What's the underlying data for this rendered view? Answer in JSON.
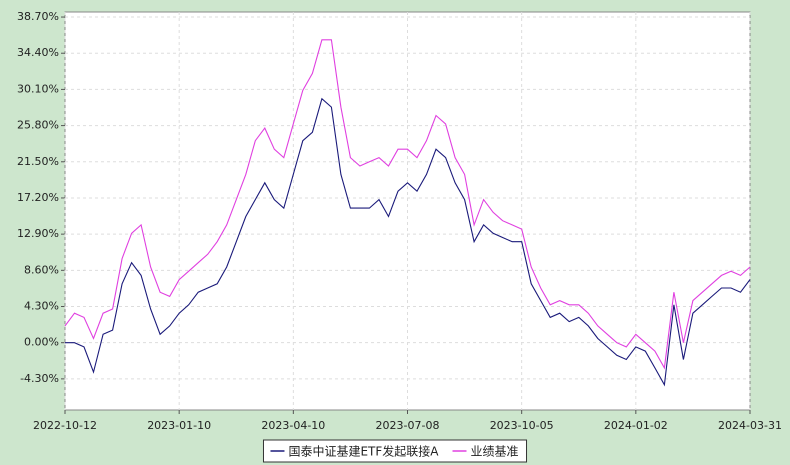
{
  "chart_data": {
    "type": "line",
    "categories": [
      "2022-10-12",
      null,
      null,
      null,
      null,
      null,
      null,
      null,
      null,
      null,
      null,
      null,
      "2023-01-10",
      null,
      null,
      null,
      null,
      null,
      null,
      null,
      null,
      null,
      null,
      null,
      "2023-04-10",
      null,
      null,
      null,
      null,
      null,
      null,
      null,
      null,
      null,
      null,
      null,
      "2023-07-08",
      null,
      null,
      null,
      null,
      null,
      null,
      null,
      null,
      null,
      null,
      null,
      "2023-10-05",
      null,
      null,
      null,
      null,
      null,
      null,
      null,
      null,
      null,
      null,
      null,
      "2024-01-02",
      null,
      null,
      null,
      null,
      null,
      null,
      null,
      null,
      null,
      null,
      null,
      "2024-03-31"
    ],
    "series": [
      {
        "name": "国泰中证基建ETF发起联接A",
        "color": "#1a1a7a",
        "values": [
          0,
          0,
          -0.5,
          -3.5,
          1,
          1.5,
          7,
          9.5,
          8,
          4,
          1,
          2,
          3.5,
          4.5,
          6,
          6.5,
          7,
          9,
          12,
          15,
          17,
          19,
          17,
          16,
          20,
          24,
          25,
          29,
          28,
          20,
          16,
          16,
          16,
          17,
          15,
          18,
          19,
          18,
          20,
          23,
          22,
          19,
          17,
          12,
          14,
          13,
          12.5,
          12,
          12,
          7,
          5,
          3,
          3.5,
          2.5,
          3,
          2,
          0.5,
          -0.5,
          -1.5,
          -2,
          -0.5,
          -1,
          -3,
          -5,
          4.5,
          -2,
          3.5,
          4.5,
          5.5,
          6.5,
          6.5,
          6,
          7.5
        ]
      },
      {
        "name": "业绩基准",
        "color": "#e040e0",
        "values": [
          2,
          3.5,
          3,
          0.5,
          3.5,
          4,
          10,
          13,
          14,
          9,
          6,
          5.5,
          7.5,
          8.5,
          9.5,
          10.5,
          12,
          14,
          17,
          20,
          24,
          25.5,
          23,
          22,
          26,
          30,
          32,
          36,
          36,
          28,
          22,
          21,
          21.5,
          22,
          21,
          23,
          23,
          22,
          24,
          27,
          26,
          22,
          20,
          14,
          17,
          15.5,
          14.5,
          14,
          13.5,
          9,
          6.5,
          4.5,
          5,
          4.5,
          4.5,
          3.5,
          2,
          1,
          0,
          -0.5,
          1,
          0,
          -1,
          -3,
          6,
          0,
          5,
          6,
          7,
          8,
          8.5,
          8,
          9
        ]
      }
    ],
    "ylim": [
      -8,
      39.3
    ],
    "yticks": [
      {
        "value": -4.3,
        "label": "-4.30%"
      },
      {
        "value": 0,
        "label": "0.00%"
      },
      {
        "value": 4.3,
        "label": "4.30%"
      },
      {
        "value": 8.6,
        "label": "8.60%"
      },
      {
        "value": 12.9,
        "label": "12.90%"
      },
      {
        "value": 17.2,
        "label": "17.20%"
      },
      {
        "value": 21.5,
        "label": "21.50%"
      },
      {
        "value": 25.8,
        "label": "25.80%"
      },
      {
        "value": 30.1,
        "label": "30.10%"
      },
      {
        "value": 34.4,
        "label": "34.40%"
      },
      {
        "value": 38.7,
        "label": "38.70%"
      }
    ],
    "grid": true
  }
}
